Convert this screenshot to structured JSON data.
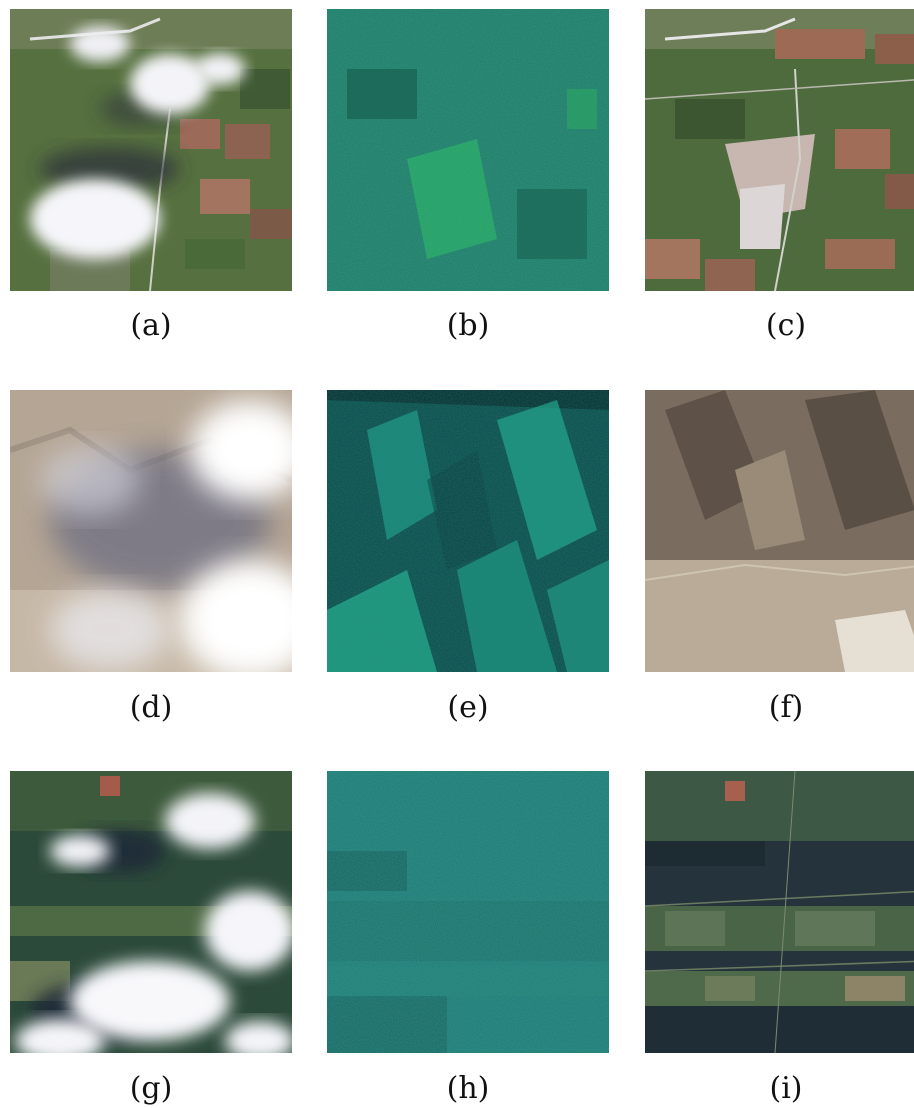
{
  "panels": [
    {
      "label": "(a)",
      "kind": "optical-cloudy",
      "scene": "farmland-town"
    },
    {
      "label": "(b)",
      "kind": "sar-composite",
      "scene": "farmland-town"
    },
    {
      "label": "(c)",
      "kind": "optical-cloud-free",
      "scene": "farmland-town"
    },
    {
      "label": "(d)",
      "kind": "optical-cloudy",
      "scene": "mountains"
    },
    {
      "label": "(e)",
      "kind": "sar-composite",
      "scene": "mountains"
    },
    {
      "label": "(f)",
      "kind": "optical-cloud-free",
      "scene": "mountains"
    },
    {
      "label": "(g)",
      "kind": "optical-cloudy",
      "scene": "forest-fields"
    },
    {
      "label": "(h)",
      "kind": "sar-composite",
      "scene": "forest-fields"
    },
    {
      "label": "(i)",
      "kind": "optical-cloud-free",
      "scene": "forest-fields"
    }
  ],
  "colors": {
    "sar_green": "#1f8f6a",
    "farm_green": "#4d6b3c",
    "farm_brown": "#9a6a55",
    "cloud_white": "#f4f4f8",
    "mountain_tan": "#a89a88",
    "forest_dark": "#25343c"
  }
}
